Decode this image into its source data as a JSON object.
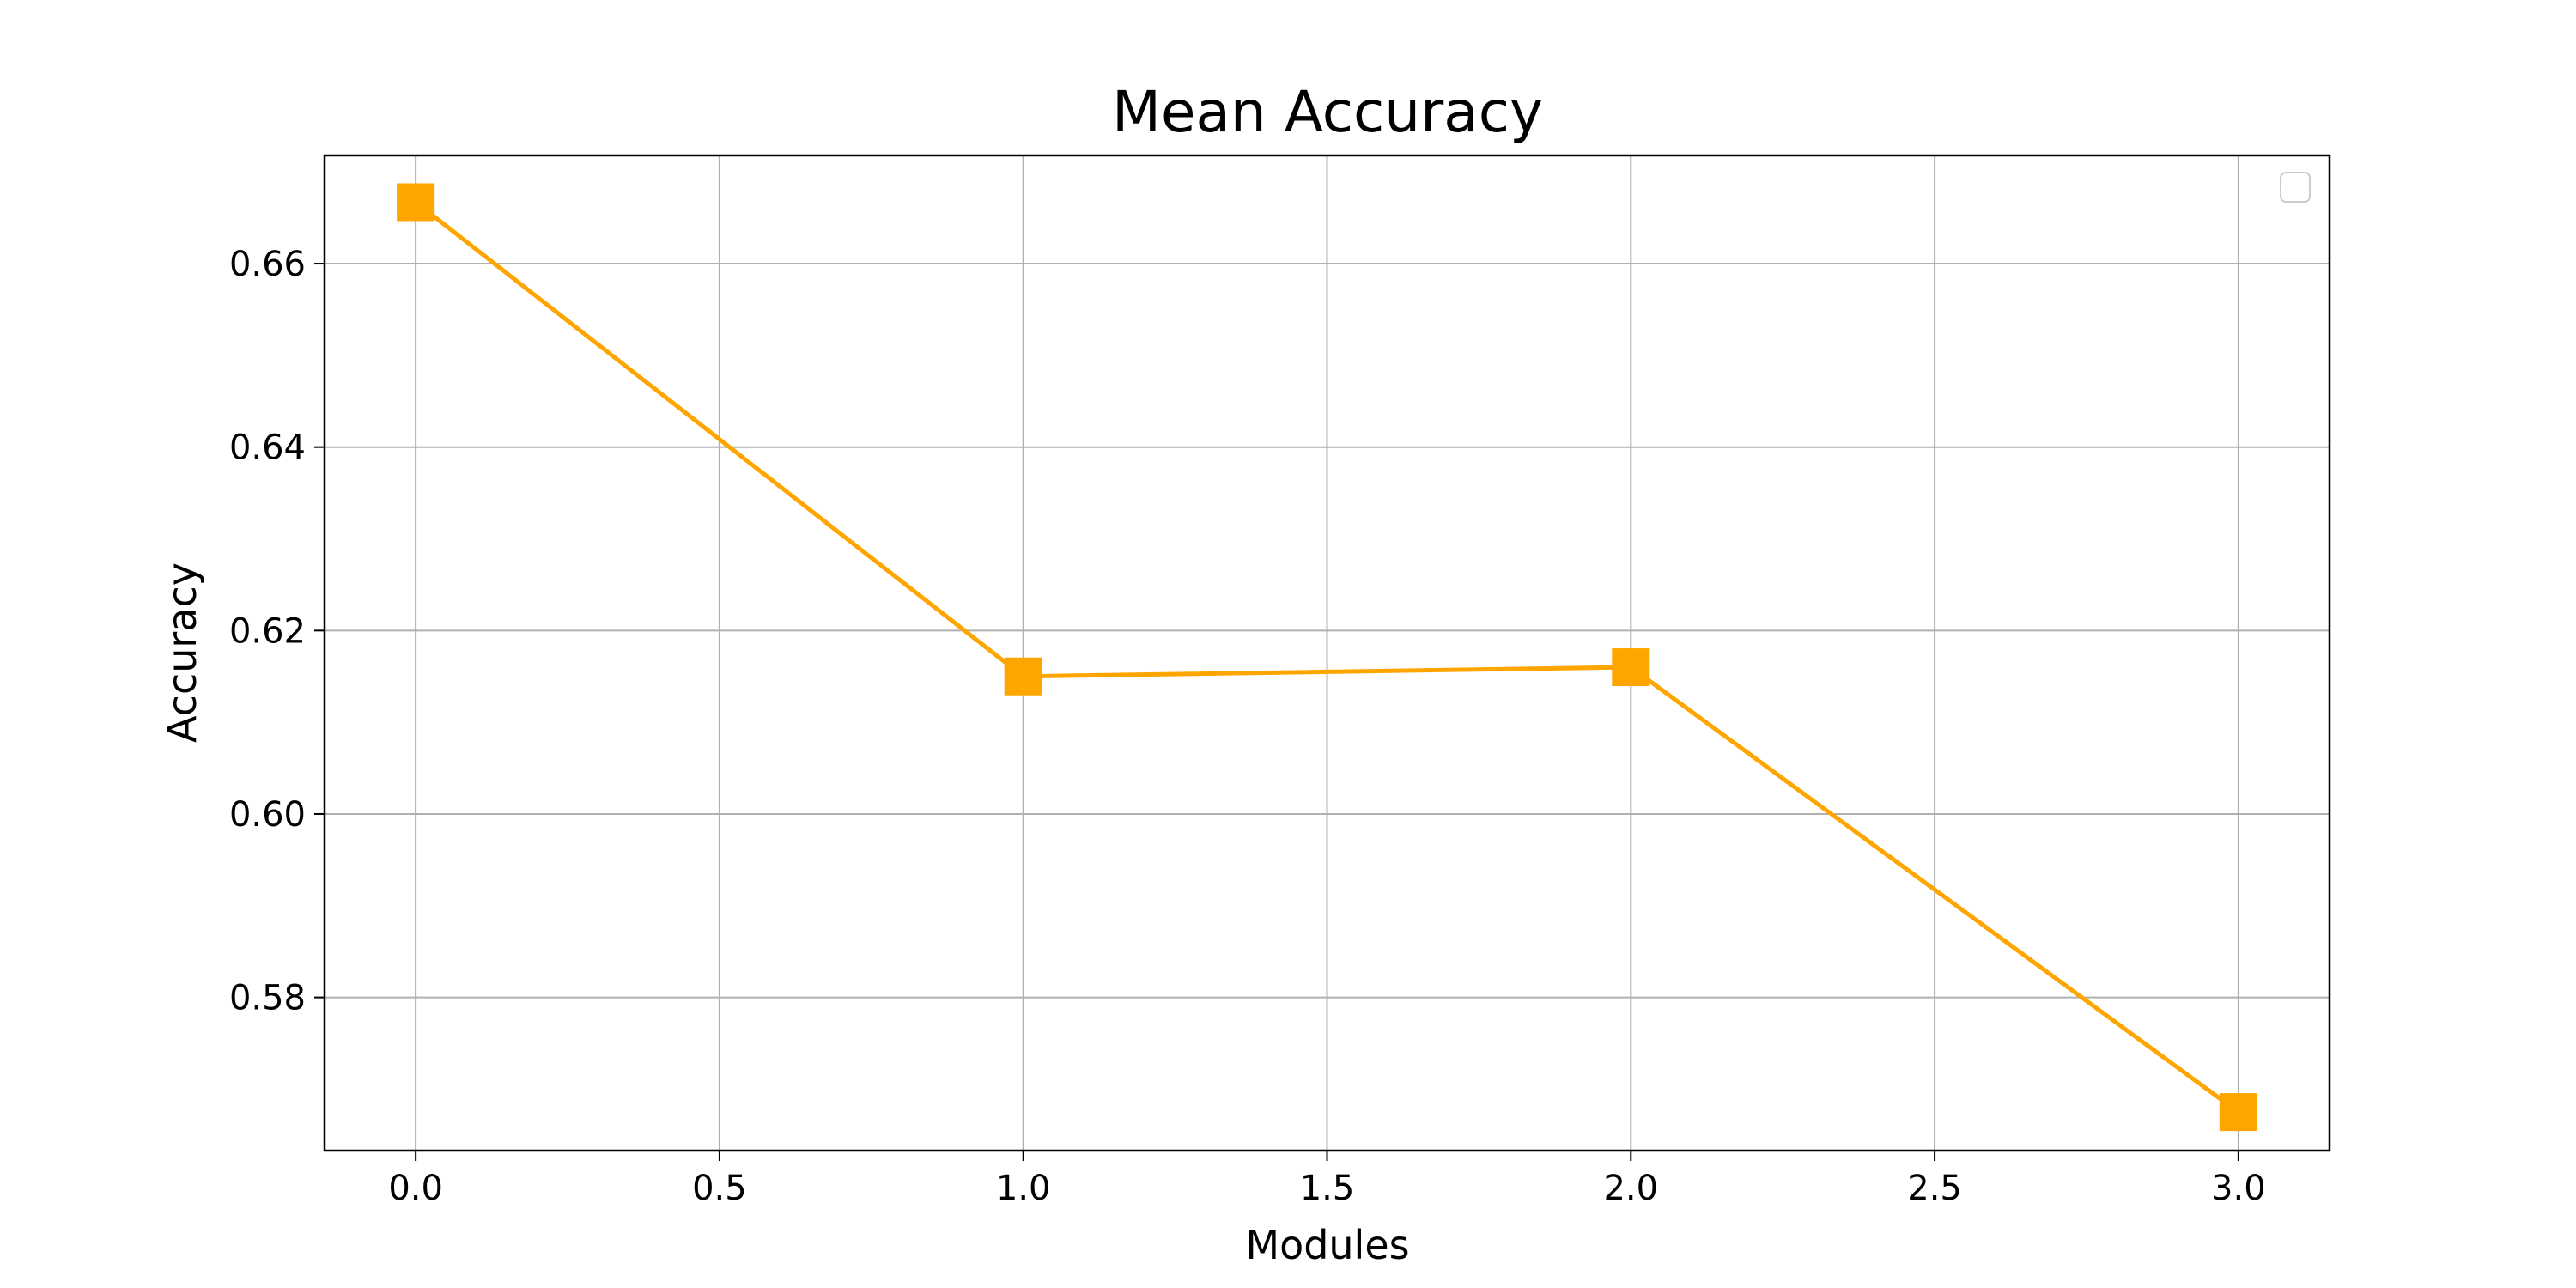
{
  "chart_data": {
    "type": "line",
    "title": "Mean Accuracy",
    "xlabel": "Modules",
    "ylabel": "Accuracy",
    "x": [
      0.0,
      1.0,
      2.0,
      3.0
    ],
    "series": [
      {
        "values": [
          0.6667,
          0.615,
          0.616,
          0.5675
        ]
      }
    ],
    "xlim": [
      -0.15,
      3.15
    ],
    "ylim": [
      0.5633,
      0.6718
    ],
    "x_ticks": [
      "0.0",
      "0.5",
      "1.0",
      "1.5",
      "2.0",
      "2.5",
      "3.0"
    ],
    "y_ticks": [
      "0.58",
      "0.60",
      "0.62",
      "0.64",
      "0.66"
    ],
    "grid": true,
    "legend": {
      "placement": "upper-right",
      "entries": []
    },
    "colors": {
      "line": "#ffa500",
      "marker": "#ffa500",
      "grid": "#b0b0b0",
      "axes": "#000000"
    },
    "marker": "square"
  }
}
